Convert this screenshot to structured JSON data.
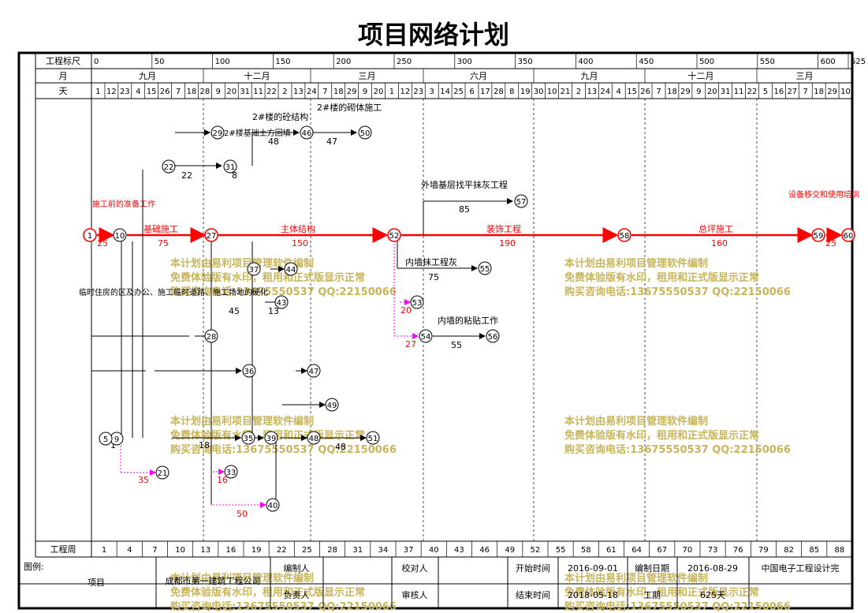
{
  "title": "项目网络计划",
  "header": {
    "scale_label": "工程标尺",
    "month_label": "月",
    "day_label": "天",
    "week_label": "工程周",
    "scale_ticks": [
      "0",
      "50",
      "100",
      "150",
      "200",
      "250",
      "300",
      "350",
      "400",
      "450",
      "500",
      "550",
      "600",
      "625"
    ],
    "months": [
      "九月",
      "十二月",
      "三月",
      "六月",
      "九月",
      "十二月",
      "三月"
    ],
    "days": [
      "1",
      "12",
      "23",
      "4",
      "15",
      "26",
      "7",
      "18",
      "28",
      "9",
      "20",
      "31",
      "11",
      "22",
      "2",
      "13",
      "24",
      "7",
      "18",
      "29",
      "9",
      "20",
      "1",
      "12",
      "23",
      "3",
      "14",
      "25",
      "6",
      "17",
      "28",
      "8",
      "19",
      "30",
      "10",
      "21",
      "2",
      "13",
      "24",
      "4",
      "15",
      "26",
      "7",
      "18",
      "29",
      "9",
      "20",
      "31",
      "11",
      "22",
      "5",
      "16",
      "27",
      "7",
      "18",
      "29",
      "10"
    ],
    "weeks": [
      "1",
      "4",
      "7",
      "10",
      "13",
      "16",
      "19",
      "22",
      "25",
      "28",
      "31",
      "34",
      "37",
      "40",
      "43",
      "46",
      "49",
      "52",
      "55",
      "58",
      "61",
      "64",
      "67",
      "70",
      "73",
      "76",
      "79",
      "82",
      "85",
      "88"
    ]
  },
  "nodes": {
    "n1": "1",
    "n10": "10",
    "n27": "27",
    "n52": "52",
    "n58": "58",
    "n59": "59",
    "n60": "60",
    "n29": "29",
    "n46": "46",
    "n50": "50",
    "n57": "57",
    "n55": "55",
    "n53": "53",
    "n54": "54",
    "n56": "56",
    "n22": "22",
    "n31": "31",
    "n37": "37",
    "n44": "44",
    "n43": "43",
    "n28": "28",
    "n36": "36",
    "n47": "47",
    "n49": "49",
    "n51": "51",
    "n48": "48",
    "n39": "39",
    "n35": "35",
    "n33": "33",
    "n40": "40",
    "n21": "21",
    "n9": "9",
    "n5": "5"
  },
  "activities": {
    "a1_name": "施工前的准备工作",
    "a1_dur": "25",
    "a10_name": "基础施工",
    "a10_dur": "75",
    "a27_name": "主体结构",
    "a27_dur": "150",
    "a52_name": "装饰工程",
    "a52_dur": "190",
    "a58_name": "总坪施工",
    "a58_dur": "160",
    "a59_name": "设备移交和使用培训",
    "a59_dur": "25",
    "ext_name": "外墙基层找平抹灰工程",
    "ext_dur": "85",
    "int_plaster_name": "内墙抹工程灰",
    "int_plaster_dur": "75",
    "int_tile_name": "内墙的粘贴工作",
    "int_tile_dur": "55",
    "b2_concrete_name": "2#楼的砼结构",
    "b2_concrete_dur": "48",
    "b2_masonry_name": "2#楼的砌体施工",
    "b2_masonry_dur": "47",
    "b2_earth_name": "2#楼基础土方回填",
    "b2_earth_dur": "8",
    "b2_found_dur": "22",
    "temp_name": "临时住房的区及办公、施工临时道路、施工场地的硬化",
    "temp_dur": "1",
    "d20": "20",
    "d27": "27",
    "d35": "35",
    "d16": "16",
    "d50": "50",
    "d45": "45",
    "d13": "13",
    "d18": "18",
    "d48": "48"
  },
  "watermark": {
    "line1": "本计划由易利项目管理软件编制",
    "line2": "免费体验版有水印，租用和正式版显示正常",
    "line3": "购买咨询电话:13675550537 QQ:22150066"
  },
  "footer": {
    "legend_label": "图例:",
    "project_label": "项目",
    "company": "成都市第一建筑工程公司",
    "prepared_label": "编制人",
    "checked_label": "校对人",
    "responsible_label": "负责人",
    "reviewer_label": "审核人",
    "start_label": "开始时间",
    "start_value": "2016-09-01",
    "end_label": "结束时间",
    "end_value": "2018-05-18",
    "compile_date_label": "编制日期",
    "compile_date_value": "2016-08-29",
    "duration_label": "工期",
    "duration_value": "625天",
    "institute": "中国电子工程设计完"
  },
  "colors": {
    "critical": "#ff0000",
    "normal": "#000000",
    "dummy": "#ff00ff",
    "free": "#00a000",
    "watermark": "#c8b45a"
  }
}
